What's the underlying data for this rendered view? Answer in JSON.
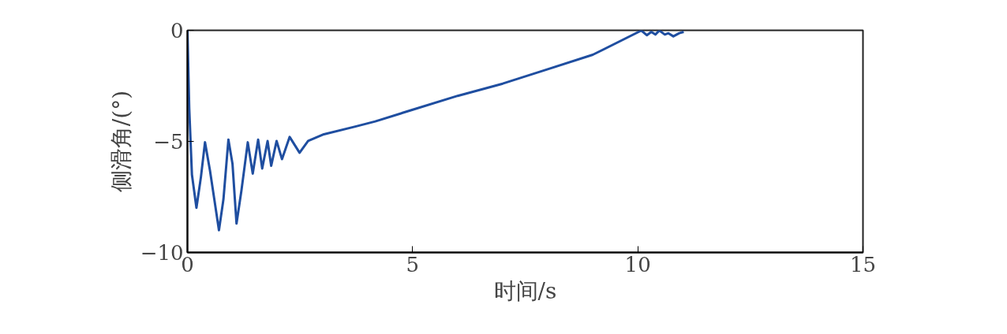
{
  "chart_data": {
    "type": "line",
    "xlabel": "时间/s",
    "ylabel": "侧滑角/(°)",
    "xlim": [
      0,
      15
    ],
    "ylim": [
      -10,
      0
    ],
    "xticks": [
      0,
      5,
      10,
      15
    ],
    "yticks": [
      -10,
      -5,
      0
    ],
    "grid": false,
    "series": [
      {
        "color": "#1f4ea0",
        "x": [
          0,
          0.04,
          0.1,
          0.2,
          0.3,
          0.39,
          0.5,
          0.7,
          0.8,
          0.91,
          1.0,
          1.09,
          1.2,
          1.34,
          1.45,
          1.57,
          1.66,
          1.78,
          1.86,
          1.98,
          2.1,
          2.27,
          2.49,
          2.68,
          3.03,
          3.73,
          4.17,
          4.96,
          6,
          7,
          8,
          9,
          10.08,
          10.2,
          10.3,
          10.39,
          10.48,
          10.6,
          10.68,
          10.79,
          10.92,
          11.02
        ],
        "values": [
          0,
          -3.5,
          -6.5,
          -7.99,
          -6.6,
          -5.04,
          -6.3,
          -9.0,
          -7.6,
          -4.92,
          -6.0,
          -8.7,
          -7.2,
          -5.04,
          -6.45,
          -4.92,
          -6.22,
          -4.98,
          -6.1,
          -4.98,
          -5.8,
          -4.8,
          -5.51,
          -4.98,
          -4.68,
          -4.33,
          -4.1,
          -3.6,
          -2.95,
          -2.4,
          -1.75,
          -1.1,
          -0.01,
          -0.22,
          -0.07,
          -0.19,
          -0.01,
          -0.19,
          -0.13,
          -0.27,
          -0.13,
          -0.07
        ]
      }
    ]
  }
}
